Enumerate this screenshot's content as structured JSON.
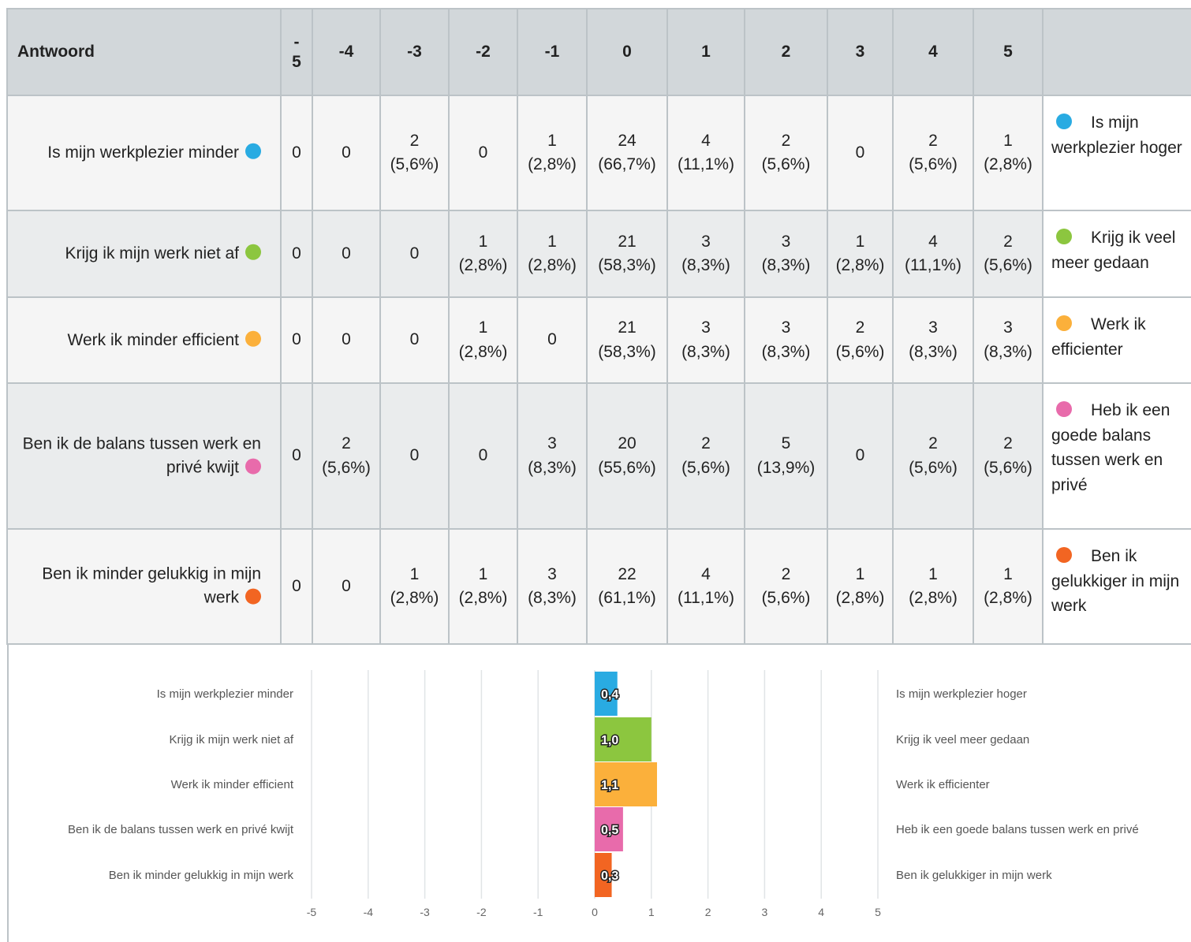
{
  "table": {
    "header": [
      "Antwoord",
      "-5",
      "-4",
      "-3",
      "-2",
      "-1",
      "0",
      "1",
      "2",
      "3",
      "4",
      "5"
    ],
    "rows": [
      {
        "label": "Is mijn werkplezier minder",
        "color": "#29abe2",
        "right": "Is mijn werkplezier hoger",
        "cells": [
          {
            "count": 0
          },
          {
            "count": 0
          },
          {
            "count": 2,
            "pct": "(5,6%)"
          },
          {
            "count": 0
          },
          {
            "count": 1,
            "pct": "(2,8%)"
          },
          {
            "count": 24,
            "pct": "(66,7%)"
          },
          {
            "count": 4,
            "pct": "(11,1%)"
          },
          {
            "count": 2,
            "pct": "(5,6%)"
          },
          {
            "count": 0
          },
          {
            "count": 2,
            "pct": "(5,6%)"
          },
          {
            "count": 1,
            "pct": "(2,8%)"
          }
        ]
      },
      {
        "label": "Krijg ik mijn werk niet af",
        "color": "#8cc63f",
        "right": "Krijg ik veel meer gedaan",
        "cells": [
          {
            "count": 0
          },
          {
            "count": 0
          },
          {
            "count": 0
          },
          {
            "count": 1,
            "pct": "(2,8%)"
          },
          {
            "count": 1,
            "pct": "(2,8%)"
          },
          {
            "count": 21,
            "pct": "(58,3%)"
          },
          {
            "count": 3,
            "pct": "(8,3%)"
          },
          {
            "count": 3,
            "pct": "(8,3%)"
          },
          {
            "count": 1,
            "pct": "(2,8%)"
          },
          {
            "count": 4,
            "pct": "(11,1%)"
          },
          {
            "count": 2,
            "pct": "(5,6%)"
          }
        ]
      },
      {
        "label": "Werk ik minder efficient",
        "color": "#fbb03b",
        "right": "Werk ik efficienter",
        "cells": [
          {
            "count": 0
          },
          {
            "count": 0
          },
          {
            "count": 0
          },
          {
            "count": 1,
            "pct": "(2,8%)"
          },
          {
            "count": 0
          },
          {
            "count": 21,
            "pct": "(58,3%)"
          },
          {
            "count": 3,
            "pct": "(8,3%)"
          },
          {
            "count": 3,
            "pct": "(8,3%)"
          },
          {
            "count": 2,
            "pct": "(5,6%)"
          },
          {
            "count": 3,
            "pct": "(8,3%)"
          },
          {
            "count": 3,
            "pct": "(8,3%)"
          }
        ]
      },
      {
        "label": "Ben ik de balans tussen werk en privé kwijt",
        "color": "#e86bab",
        "right": "Heb ik een goede balans tussen werk en privé",
        "cells": [
          {
            "count": 0
          },
          {
            "count": 2,
            "pct": "(5,6%)"
          },
          {
            "count": 0
          },
          {
            "count": 0
          },
          {
            "count": 3,
            "pct": "(8,3%)"
          },
          {
            "count": 20,
            "pct": "(55,6%)"
          },
          {
            "count": 2,
            "pct": "(5,6%)"
          },
          {
            "count": 5,
            "pct": "(13,9%)"
          },
          {
            "count": 0
          },
          {
            "count": 2,
            "pct": "(5,6%)"
          },
          {
            "count": 2,
            "pct": "(5,6%)"
          }
        ]
      },
      {
        "label": "Ben ik minder gelukkig in mijn werk",
        "color": "#f26522",
        "right": "Ben ik gelukkiger in mijn werk",
        "cells": [
          {
            "count": 0
          },
          {
            "count": 0
          },
          {
            "count": 1,
            "pct": "(2,8%)"
          },
          {
            "count": 1,
            "pct": "(2,8%)"
          },
          {
            "count": 3,
            "pct": "(8,3%)"
          },
          {
            "count": 22,
            "pct": "(61,1%)"
          },
          {
            "count": 4,
            "pct": "(11,1%)"
          },
          {
            "count": 2,
            "pct": "(5,6%)"
          },
          {
            "count": 1,
            "pct": "(2,8%)"
          },
          {
            "count": 1,
            "pct": "(2,8%)"
          },
          {
            "count": 1,
            "pct": "(2,8%)"
          }
        ]
      }
    ]
  },
  "chart_data": {
    "type": "bar",
    "orientation": "horizontal",
    "categories": [
      "Is mijn werkplezier minder",
      "Krijg ik mijn werk niet af",
      "Werk ik minder efficient",
      "Ben ik de balans tussen werk en privé kwijt",
      "Ben ik minder gelukkig in mijn werk"
    ],
    "right_labels": [
      "Is mijn werkplezier hoger",
      "Krijg ik veel meer gedaan",
      "Werk ik efficienter",
      "Heb ik een goede balans tussen werk en privé",
      "Ben ik gelukkiger in mijn werk"
    ],
    "values": [
      0.4,
      1.0,
      1.1,
      0.5,
      0.3
    ],
    "value_labels": [
      "0,4",
      "1,0",
      "1,1",
      "0,5",
      "0,3"
    ],
    "colors": [
      "#29abe2",
      "#8cc63f",
      "#fbb03b",
      "#e86bab",
      "#f26522"
    ],
    "xlim": [
      -5,
      5
    ],
    "xticks": [
      -5,
      -4,
      -3,
      -2,
      -1,
      0,
      1,
      2,
      3,
      4,
      5
    ],
    "grid": true
  }
}
